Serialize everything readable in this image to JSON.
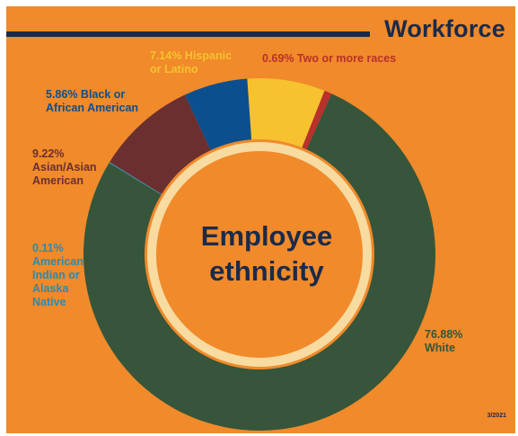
{
  "header": {
    "title": "Workforce"
  },
  "center": {
    "title": "Employee\nethnicity"
  },
  "footer": {
    "date": "3/2021"
  },
  "colors": {
    "background": "#f08a2a",
    "navy": "#1b2a4a",
    "inner_ring": "#f7dba1"
  },
  "chart_data": {
    "type": "pie",
    "variant": "donut",
    "title": "Employee ethnicity",
    "slices": [
      {
        "label": "Hispanic or Latino",
        "value": 7.14,
        "text": "7.14% Hispanic\nor Latino",
        "color": "#f6c230",
        "label_color": "#f6c230"
      },
      {
        "label": "Two or more races",
        "value": 0.69,
        "text": "0.69% Two or more races",
        "color": "#b8312c",
        "label_color": "#b8312c"
      },
      {
        "label": "White",
        "value": 76.88,
        "text": "76.88%\nWhite",
        "color": "#36553a",
        "label_color": "#36553a"
      },
      {
        "label": "American Indian or Alaska Native",
        "value": 0.11,
        "text": "0.11%\nAmerican\nIndian or\nAlaska\nNative",
        "color": "#2b8ab0",
        "label_color": "#2b8ab0"
      },
      {
        "label": "Asian/Asian American",
        "value": 9.22,
        "text": "9.22%\nAsian/Asian\nAmerican",
        "color": "#6b2f30",
        "label_color": "#6b2f30"
      },
      {
        "label": "Black or African American",
        "value": 5.86,
        "text": "5.86% Black or\nAfrican American",
        "color": "#0c4f8e",
        "label_color": "#0c4f8e"
      }
    ]
  }
}
